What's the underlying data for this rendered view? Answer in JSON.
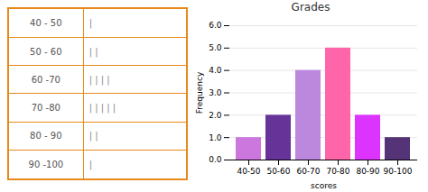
{
  "chart_data": [
    {
      "type": "table",
      "categories": [
        "40 - 50",
        "50 - 60",
        "60 -70",
        "70 -80",
        "80 - 90",
        "90 -100"
      ],
      "values": [
        1,
        2,
        4,
        5,
        2,
        1
      ],
      "value_labels": [
        "|",
        "| |",
        "| | | |",
        "| | | | |",
        "| |",
        "|"
      ],
      "color": "#e8891a"
    },
    {
      "type": "bar",
      "title": "Grades",
      "xlabel": "scores",
      "ylabel": "Frequency",
      "categories": [
        "40-50",
        "50-60",
        "60-70",
        "70-80",
        "80-90",
        "90-100"
      ],
      "values": [
        1,
        2,
        4,
        5,
        2,
        1
      ],
      "colors": [
        "#cc77dd",
        "#663399",
        "#bb88dd",
        "#ff66aa",
        "#dd33ff",
        "#553377"
      ],
      "ylim": [
        0,
        6
      ],
      "yticks": [
        0,
        1,
        2,
        3,
        4,
        5,
        6
      ],
      "grid": true
    }
  ]
}
